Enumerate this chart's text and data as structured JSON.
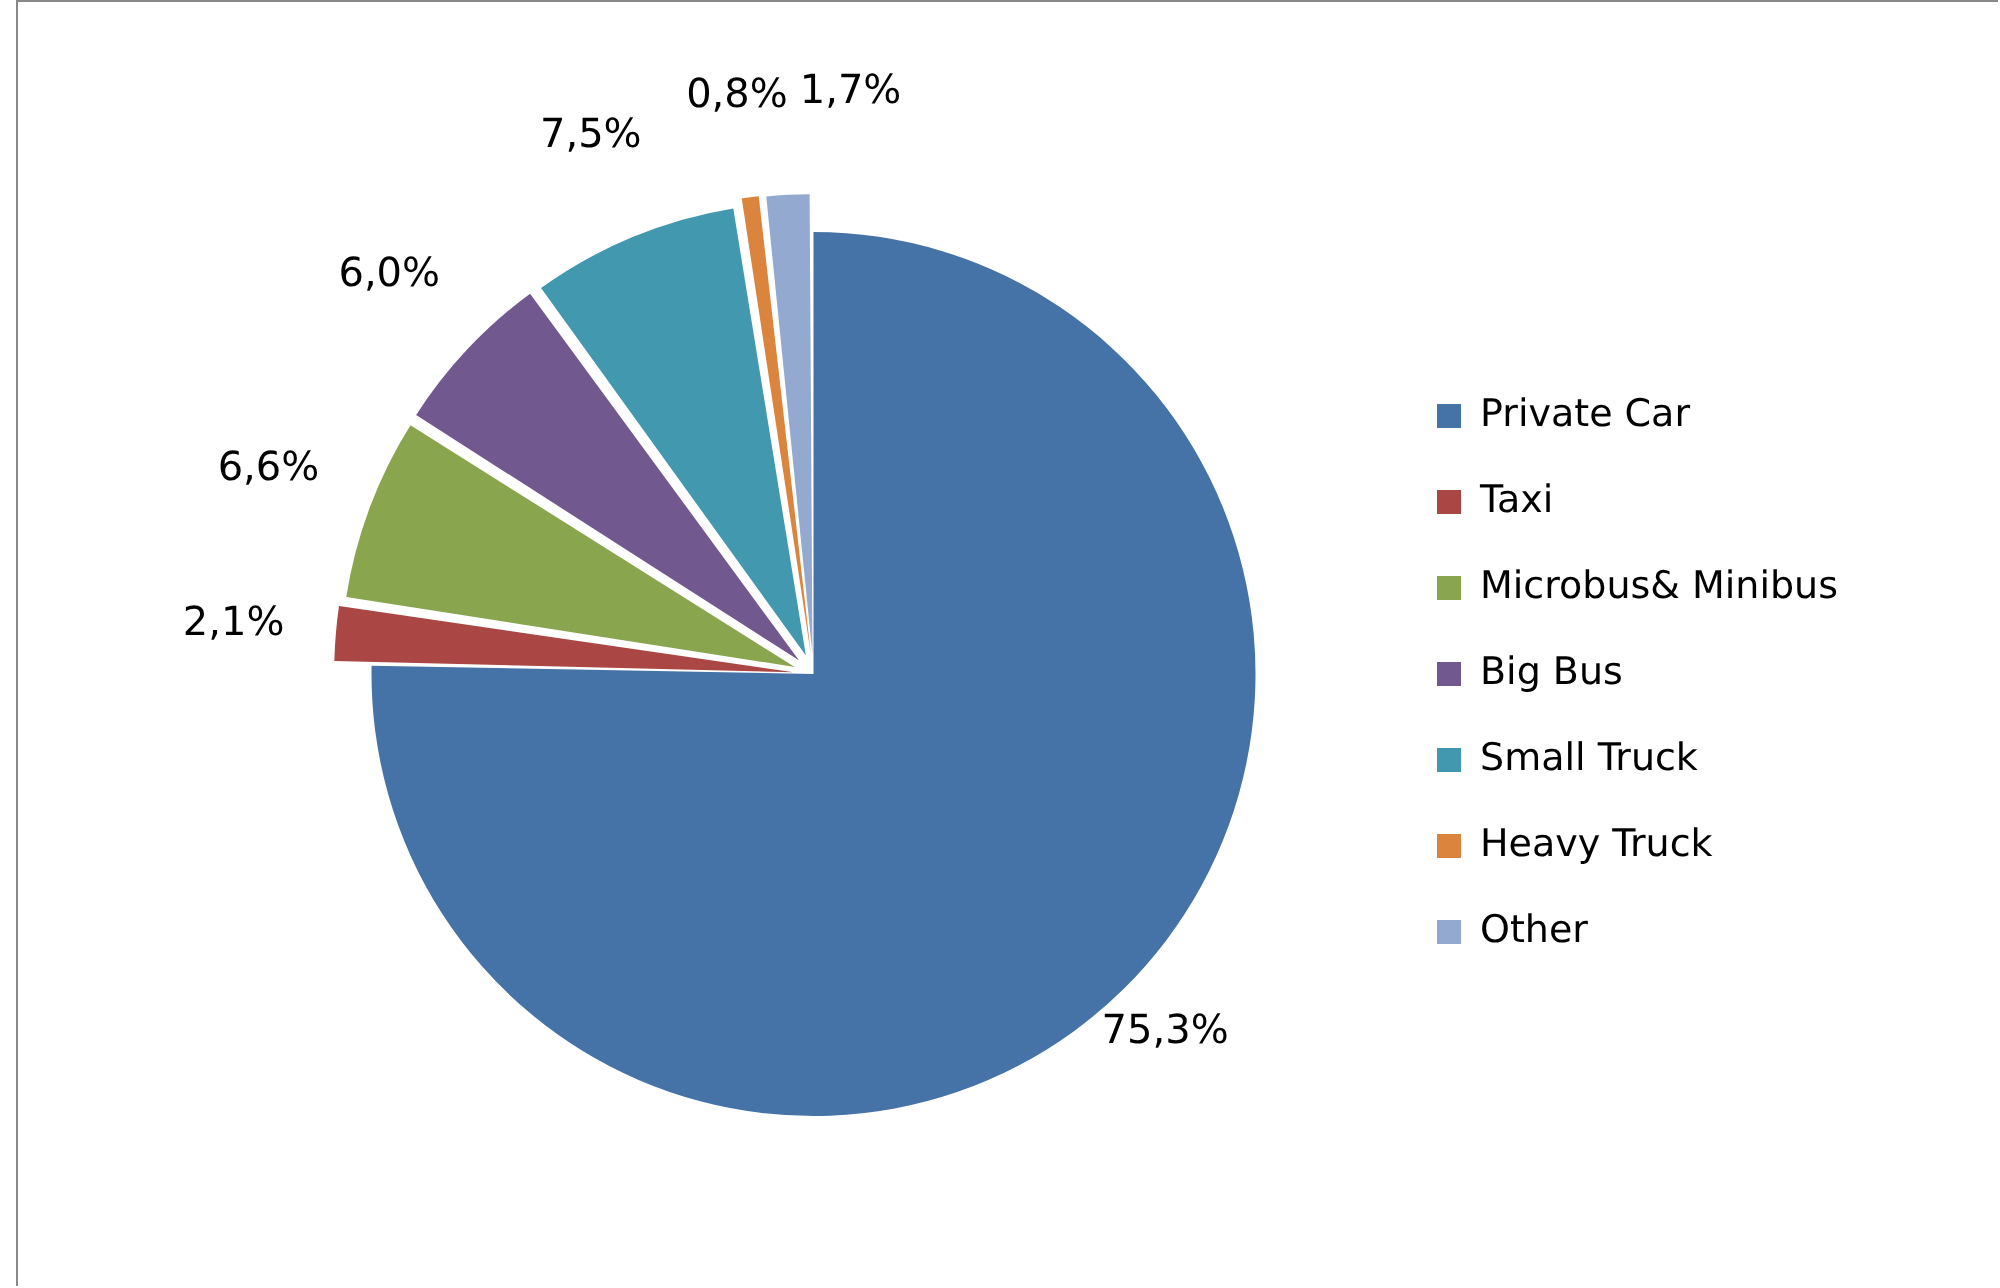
{
  "chart_data": {
    "type": "pie",
    "categories": [
      "Private Car",
      "Taxi",
      "Microbus& Minibus",
      "Big Bus",
      "Small Truck",
      "Heavy Truck",
      "Other"
    ],
    "values": [
      75.3,
      2.1,
      6.6,
      6.0,
      7.5,
      0.8,
      1.7
    ],
    "value_labels": [
      "75,3%",
      "2,1%",
      "6,6%",
      "6,0%",
      "7,5%",
      "0,8%",
      "1,7%"
    ],
    "colors": [
      "#4572a7",
      "#aa4643",
      "#89a54e",
      "#71588f",
      "#4198af",
      "#db843d",
      "#93a9cf"
    ],
    "legend": "right"
  }
}
